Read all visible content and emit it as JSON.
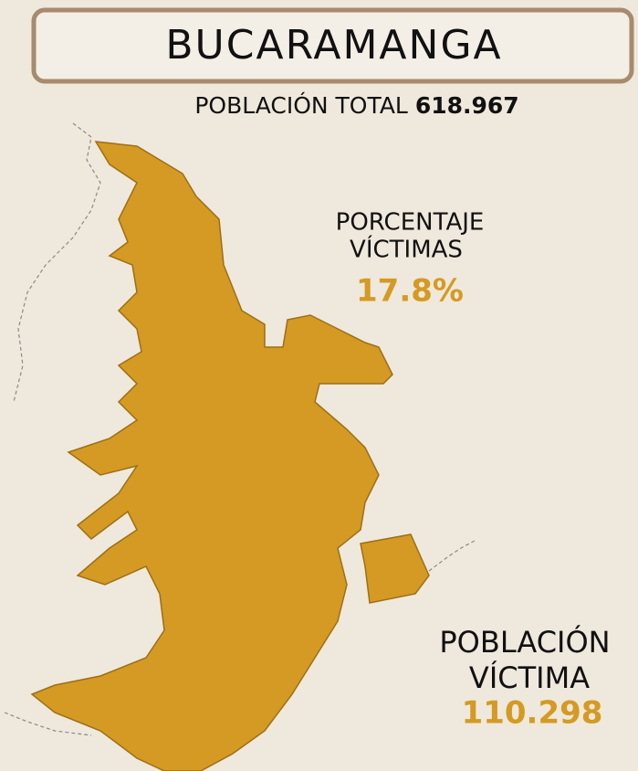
{
  "title": "BUCARAMANGA",
  "total": {
    "label": "POBLACIÓN TOTAL",
    "value": "618.967"
  },
  "percentage": {
    "label_lines": [
      "PORCENTAJE",
      "VÍCTIMAS"
    ],
    "value": "17.8%"
  },
  "victims": {
    "label_lines": [
      "POBLACIÓN",
      "VÍCTIMA"
    ],
    "value": "110.298"
  }
}
